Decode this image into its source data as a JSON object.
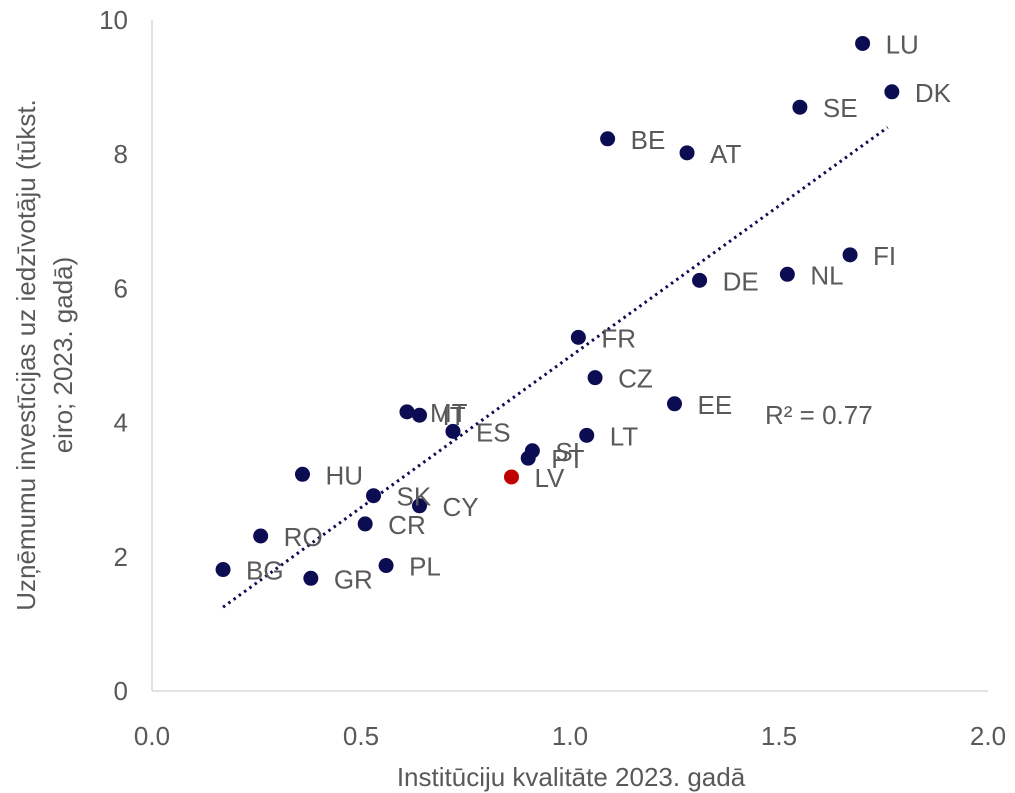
{
  "chart_data": {
    "type": "scatter",
    "title": "",
    "xlabel": "Institūciju kvalitāte 2023. gadā",
    "ylabel_line1": "Uzņēmumu investīcijas uz iedzīvotāju (tūkst.",
    "ylabel_line2": "eiro; 2023. gadā)",
    "xlim": [
      0,
      2
    ],
    "ylim": [
      0,
      10
    ],
    "xticks": [
      0,
      0.5,
      1,
      1.5,
      2
    ],
    "xtick_labels": [
      "0.0",
      "0.5",
      "1.0",
      "1.5",
      "2.0"
    ],
    "yticks": [
      0,
      2,
      4,
      6,
      8,
      10
    ],
    "ytick_labels": [
      "0",
      "2",
      "4",
      "6",
      "8",
      "10"
    ],
    "grid": false,
    "point_color": "#0c0c52",
    "highlight_color": "#c00000",
    "trendline": {
      "type": "linear",
      "color": "#0c0c52",
      "style": "dotted",
      "x_range": [
        0.17,
        1.76
      ],
      "y_range": [
        1.25,
        8.4
      ],
      "r2_text": "R² = 0.77"
    },
    "points": [
      {
        "label": "LU",
        "x": 1.7,
        "y": 9.65
      },
      {
        "label": "DK",
        "x": 1.77,
        "y": 8.93
      },
      {
        "label": "SE",
        "x": 1.55,
        "y": 8.7
      },
      {
        "label": "BE",
        "x": 1.09,
        "y": 8.23
      },
      {
        "label": "AT",
        "x": 1.28,
        "y": 8.02
      },
      {
        "label": "FI",
        "x": 1.67,
        "y": 6.5
      },
      {
        "label": "NL",
        "x": 1.52,
        "y": 6.21
      },
      {
        "label": "DE",
        "x": 1.31,
        "y": 6.12
      },
      {
        "label": "FR",
        "x": 1.02,
        "y": 5.27
      },
      {
        "label": "CZ",
        "x": 1.06,
        "y": 4.67
      },
      {
        "label": "EE",
        "x": 1.25,
        "y": 4.28
      },
      {
        "label": "MT",
        "x": 0.61,
        "y": 4.16
      },
      {
        "label": "IT",
        "x": 0.64,
        "y": 4.11
      },
      {
        "label": "ES",
        "x": 0.72,
        "y": 3.87
      },
      {
        "label": "LT",
        "x": 1.04,
        "y": 3.81
      },
      {
        "label": "SI",
        "x": 0.91,
        "y": 3.58
      },
      {
        "label": "PT",
        "x": 0.9,
        "y": 3.47
      },
      {
        "label": "LV",
        "x": 0.86,
        "y": 3.19,
        "highlight": true
      },
      {
        "label": "HU",
        "x": 0.36,
        "y": 3.23
      },
      {
        "label": "SK",
        "x": 0.53,
        "y": 2.91
      },
      {
        "label": "CY",
        "x": 0.64,
        "y": 2.76
      },
      {
        "label": "CR",
        "x": 0.51,
        "y": 2.49
      },
      {
        "label": "RO",
        "x": 0.26,
        "y": 2.31
      },
      {
        "label": "BG",
        "x": 0.17,
        "y": 1.81
      },
      {
        "label": "PL",
        "x": 0.56,
        "y": 1.87
      },
      {
        "label": "GR",
        "x": 0.38,
        "y": 1.68
      }
    ]
  }
}
